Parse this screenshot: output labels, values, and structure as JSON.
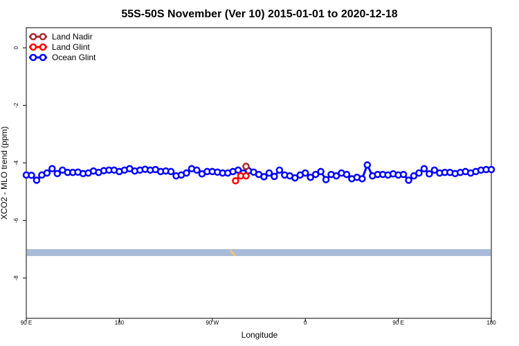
{
  "chart_data": {
    "type": "line",
    "title": "55S-50S November (Ver 10)   2015-01-01 to 2020-12-18",
    "xlabel": "Longitude",
    "ylabel": "XCO2 - MLO trend (ppm)",
    "xlim": [
      0,
      360
    ],
    "ylim": [
      -9.4,
      0.7
    ],
    "x_ticks": [
      {
        "value": 0,
        "label": "90 E"
      },
      {
        "value": 72,
        "label": "180"
      },
      {
        "value": 144,
        "label": "90 W"
      },
      {
        "value": 216,
        "label": "0"
      },
      {
        "value": 288,
        "label": "90 E"
      },
      {
        "value": 360,
        "label": "180"
      }
    ],
    "y_ticks": [
      0,
      -2,
      -4,
      -6,
      -8
    ],
    "grid": false,
    "legend_position": "top-left",
    "series": [
      {
        "name": "Land Nadir",
        "color": "#a52a2a",
        "x": [
          170.1
        ],
        "y": [
          -4.12
        ]
      },
      {
        "name": "Land Glint",
        "color": "#ff0000",
        "x": [
          162,
          166,
          170.1
        ],
        "y": [
          -4.62,
          -4.45,
          -4.45
        ]
      },
      {
        "name": "Ocean Glint",
        "color": "#0000ff",
        "x": [
          0,
          4,
          8,
          12,
          16,
          20,
          24,
          28,
          32,
          36,
          40,
          44,
          48,
          52,
          56,
          60,
          64,
          68,
          72,
          76,
          80,
          84,
          88,
          92,
          96,
          100,
          104,
          108,
          112,
          116,
          120,
          124,
          128,
          132,
          136,
          140,
          144,
          148,
          152,
          156,
          160,
          164,
          168,
          172,
          176,
          180,
          184,
          188,
          192,
          196,
          200,
          204,
          208,
          212,
          216,
          220,
          224,
          228,
          232,
          236,
          240,
          244,
          248,
          252,
          256,
          260,
          264,
          268,
          272,
          276,
          280,
          284,
          288,
          292,
          296,
          300,
          304,
          308,
          312,
          316,
          320,
          324,
          328,
          332,
          336,
          340,
          344,
          348,
          352,
          356,
          360
        ],
        "y": [
          -4.42,
          -4.43,
          -4.6,
          -4.42,
          -4.35,
          -4.2,
          -4.37,
          -4.25,
          -4.33,
          -4.33,
          -4.32,
          -4.37,
          -4.35,
          -4.28,
          -4.33,
          -4.27,
          -4.25,
          -4.25,
          -4.3,
          -4.25,
          -4.2,
          -4.28,
          -4.25,
          -4.22,
          -4.25,
          -4.23,
          -4.3,
          -4.28,
          -4.3,
          -4.45,
          -4.42,
          -4.35,
          -4.2,
          -4.25,
          -4.38,
          -4.3,
          -4.3,
          -4.32,
          -4.35,
          -4.35,
          -4.3,
          -4.25,
          -4.35,
          -4.27,
          -4.32,
          -4.4,
          -4.48,
          -4.35,
          -4.47,
          -4.25,
          -4.42,
          -4.45,
          -4.52,
          -4.42,
          -4.35,
          -4.5,
          -4.4,
          -4.3,
          -4.58,
          -4.4,
          -4.45,
          -4.35,
          -4.4,
          -4.55,
          -4.5,
          -4.55,
          -4.07,
          -4.45,
          -4.4,
          -4.4,
          -4.42,
          -4.38,
          -4.42,
          -4.4,
          -4.6,
          -4.45,
          -4.35,
          -4.2,
          -4.38,
          -4.25,
          -4.35,
          -4.33,
          -4.33,
          -4.37,
          -4.33,
          -4.3,
          -4.35,
          -4.3,
          -4.25,
          -4.23,
          -4.23
        ]
      }
    ]
  }
}
